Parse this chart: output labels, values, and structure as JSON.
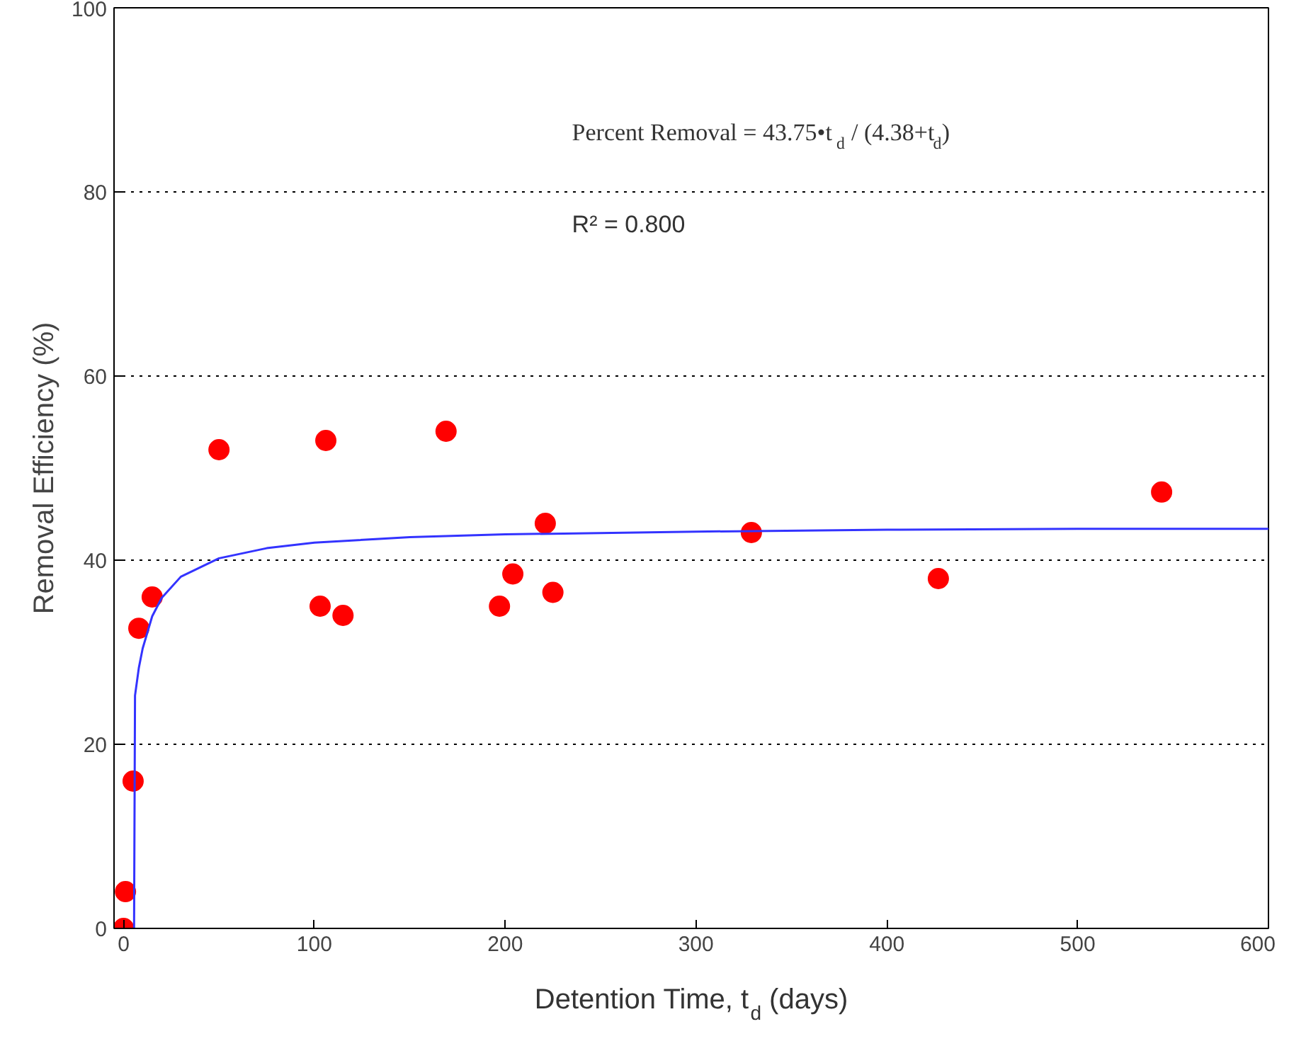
{
  "chart_data": {
    "type": "scatter",
    "xlabel": "Detention Time, t$_{d}$ (days)",
    "ylabel": "Removal Efficiency (%)",
    "annotations": [
      "Percent Removal = 43.75•t$_{d}$ / (4.38+t$_{d}$)",
      "R² = 0.800"
    ],
    "series": [
      {
        "type": "scatter",
        "color": "#ff0000",
        "marker": "circle",
        "x": [
          0,
          1,
          5,
          8,
          15,
          50,
          103,
          106,
          115,
          169,
          197,
          204,
          221,
          225,
          329,
          427,
          544
        ],
        "values": [
          0,
          4,
          16,
          32.6,
          36,
          52,
          35,
          53,
          34,
          54,
          35,
          38.5,
          44,
          36.5,
          43,
          38,
          47.4
        ]
      },
      {
        "type": "line",
        "color": "#3333ff",
        "line_style": "solid",
        "x": [
          5.5,
          6,
          8,
          10,
          15,
          20,
          30,
          50,
          75,
          100,
          150,
          200,
          300,
          400,
          500,
          600
        ],
        "values": [
          0,
          25.3,
          28.3,
          30.4,
          33.9,
          35.9,
          38.2,
          40.2,
          41.3,
          41.9,
          42.5,
          42.8,
          43.1,
          43.3,
          43.4,
          43.4
        ]
      }
    ],
    "xlim": [
      -5,
      600
    ],
    "xticks": [
      0,
      100,
      200,
      300,
      400,
      500,
      600
    ],
    "ylim": [
      0,
      100
    ],
    "yticks": [
      0,
      20,
      40,
      60,
      80,
      100
    ],
    "grid": "y"
  }
}
